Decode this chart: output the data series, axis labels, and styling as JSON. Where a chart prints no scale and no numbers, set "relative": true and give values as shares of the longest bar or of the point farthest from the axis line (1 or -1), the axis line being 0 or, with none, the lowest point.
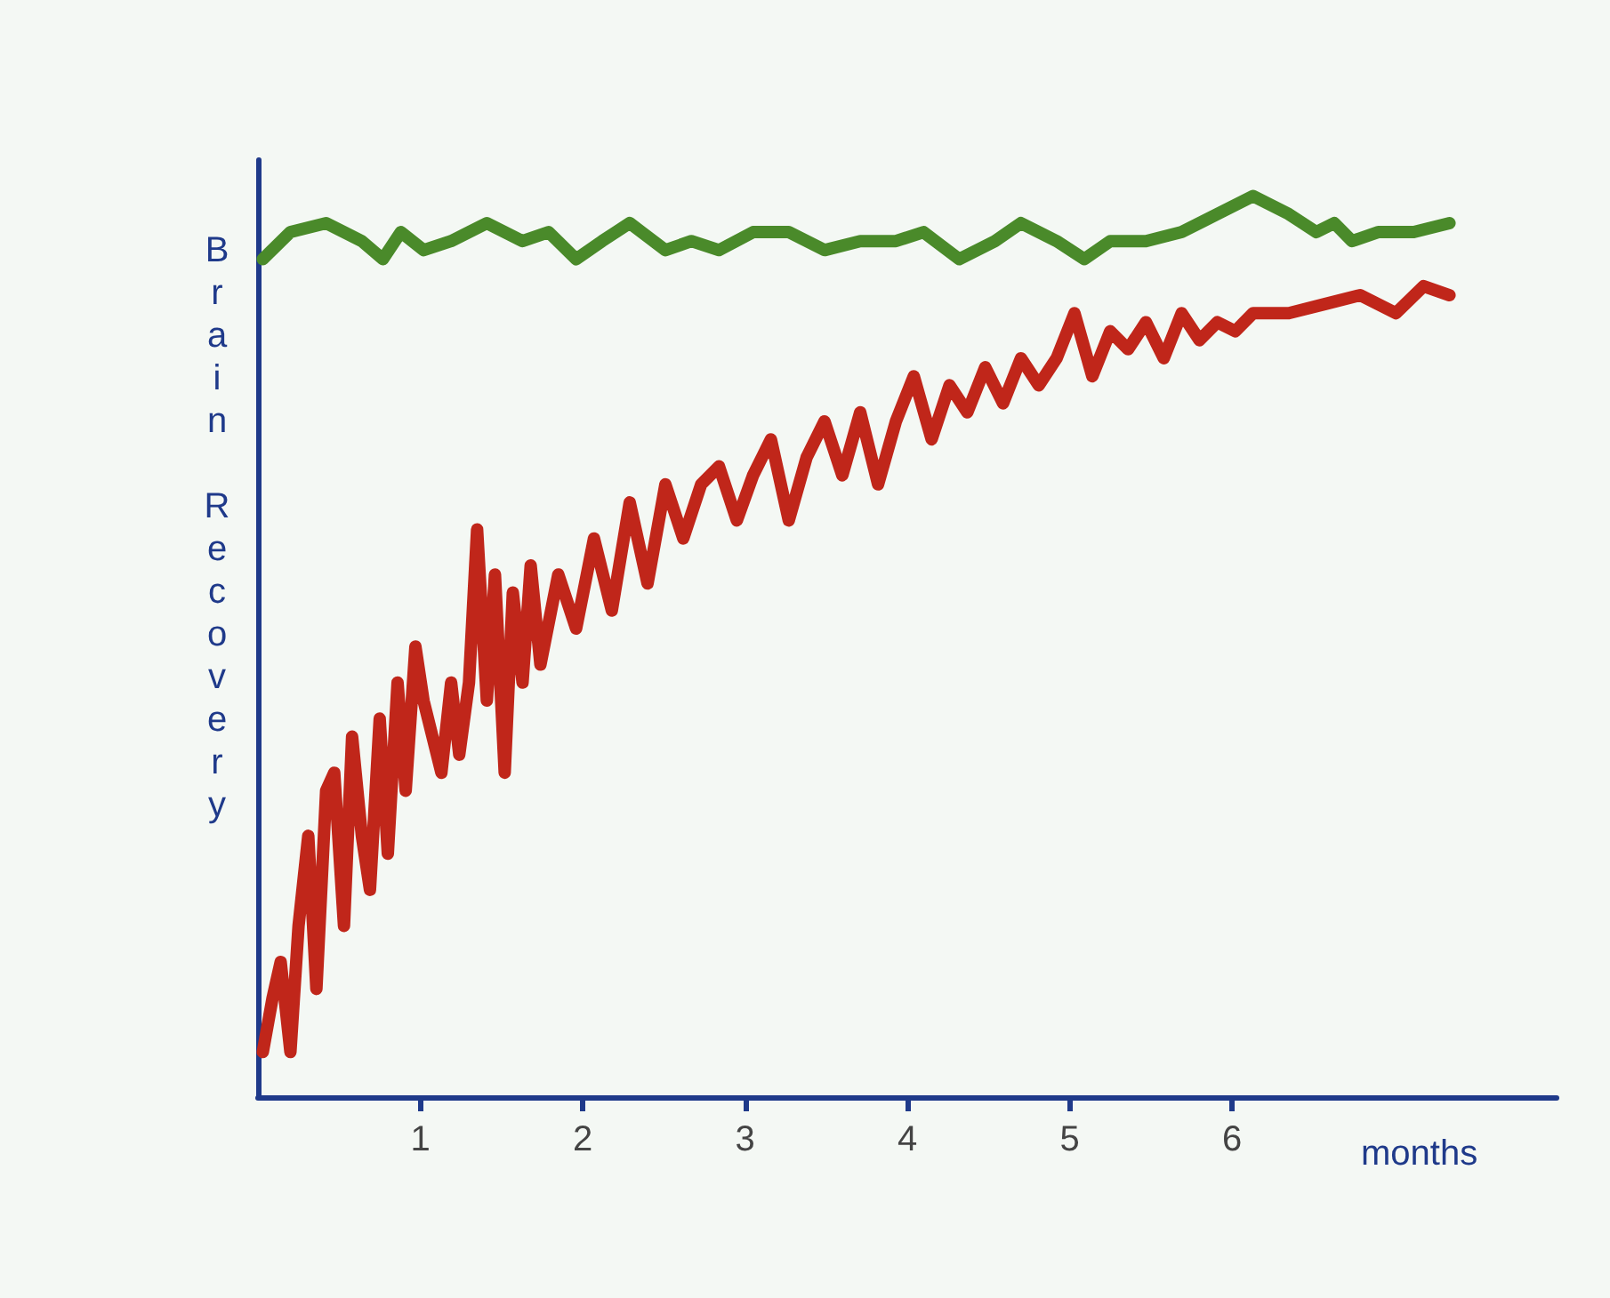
{
  "chart_data": {
    "type": "line",
    "relative": true,
    "xlabel": "months",
    "ylabel": "Brain Recovery",
    "xlim": [
      0,
      8
    ],
    "xticks": [
      1,
      2,
      3,
      4,
      5,
      6
    ],
    "grid": false,
    "series": [
      {
        "color": "#4a8a2a",
        "x": [
          0.03,
          0.2,
          0.42,
          0.64,
          0.77,
          0.88,
          1.02,
          1.19,
          1.41,
          1.63,
          1.79,
          1.96,
          2.12,
          2.29,
          2.51,
          2.67,
          2.84,
          3.05,
          3.27,
          3.49,
          3.71,
          3.93,
          4.1,
          4.32,
          4.54,
          4.7,
          4.92,
          5.09,
          5.25,
          5.47,
          5.69,
          5.91,
          6.13,
          6.35,
          6.52,
          6.63,
          6.74,
          6.9,
          7.12,
          7.34
        ],
        "values": [
          0.93,
          0.96,
          0.97,
          0.95,
          0.93,
          0.96,
          0.94,
          0.95,
          0.97,
          0.95,
          0.96,
          0.93,
          0.95,
          0.97,
          0.94,
          0.95,
          0.94,
          0.96,
          0.96,
          0.94,
          0.95,
          0.95,
          0.96,
          0.93,
          0.95,
          0.97,
          0.95,
          0.93,
          0.95,
          0.95,
          0.96,
          0.98,
          1.0,
          0.98,
          0.96,
          0.97,
          0.95,
          0.96,
          0.96,
          0.97
        ]
      },
      {
        "color": "#c0261a",
        "x": [
          0.03,
          0.09,
          0.14,
          0.2,
          0.25,
          0.31,
          0.36,
          0.42,
          0.47,
          0.53,
          0.58,
          0.64,
          0.69,
          0.75,
          0.8,
          0.86,
          0.91,
          0.97,
          1.02,
          1.13,
          1.19,
          1.24,
          1.3,
          1.35,
          1.41,
          1.46,
          1.52,
          1.57,
          1.63,
          1.68,
          1.74,
          1.85,
          1.96,
          2.07,
          2.18,
          2.29,
          2.4,
          2.51,
          2.62,
          2.73,
          2.84,
          2.95,
          3.05,
          3.16,
          3.27,
          3.38,
          3.49,
          3.6,
          3.71,
          3.82,
          3.93,
          4.04,
          4.15,
          4.26,
          4.37,
          4.48,
          4.59,
          4.7,
          4.81,
          4.92,
          5.03,
          5.14,
          5.25,
          5.36,
          5.47,
          5.58,
          5.69,
          5.8,
          5.91,
          6.02,
          6.13,
          6.35,
          6.57,
          6.79,
          7.01,
          7.18,
          7.34
        ],
        "values": [
          0.05,
          0.11,
          0.15,
          0.05,
          0.19,
          0.29,
          0.12,
          0.34,
          0.36,
          0.19,
          0.4,
          0.29,
          0.23,
          0.42,
          0.27,
          0.46,
          0.34,
          0.5,
          0.44,
          0.36,
          0.46,
          0.38,
          0.46,
          0.63,
          0.44,
          0.58,
          0.36,
          0.56,
          0.46,
          0.59,
          0.48,
          0.58,
          0.52,
          0.62,
          0.54,
          0.66,
          0.57,
          0.68,
          0.62,
          0.68,
          0.7,
          0.64,
          0.69,
          0.73,
          0.64,
          0.71,
          0.75,
          0.69,
          0.76,
          0.68,
          0.75,
          0.8,
          0.73,
          0.79,
          0.76,
          0.81,
          0.77,
          0.82,
          0.79,
          0.82,
          0.87,
          0.8,
          0.85,
          0.83,
          0.86,
          0.82,
          0.87,
          0.84,
          0.86,
          0.85,
          0.87,
          0.87,
          0.88,
          0.89,
          0.87,
          0.9,
          0.89
        ]
      }
    ]
  }
}
